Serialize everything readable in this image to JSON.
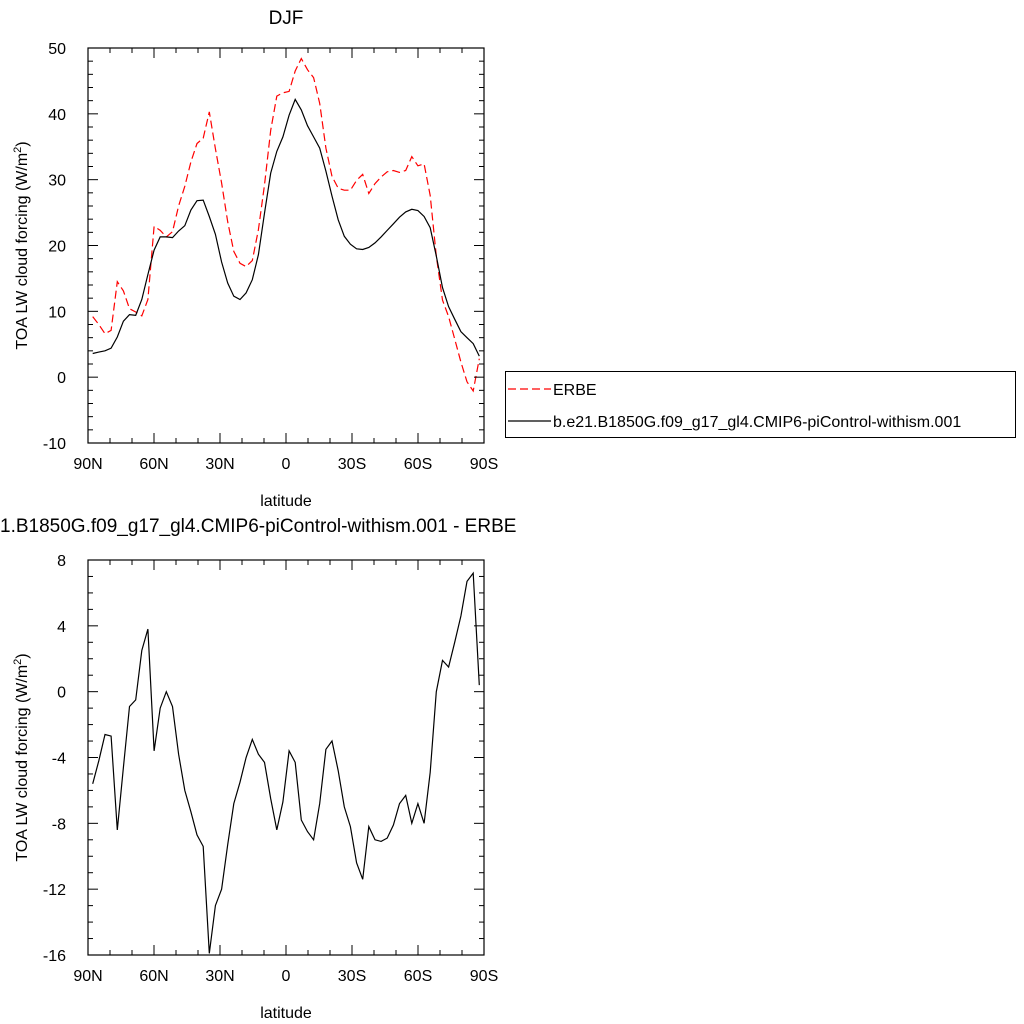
{
  "chart_data": [
    {
      "type": "line",
      "title": "DJF",
      "xlabel": "latitude",
      "ylabel": "TOA LW cloud forcing (W/m",
      "ylabel_sup": "2",
      "ylabel_end": ")",
      "xlim": [
        90,
        -90
      ],
      "ylim": [
        -10,
        50
      ],
      "xticks": [
        90,
        60,
        30,
        0,
        -30,
        -60,
        -90
      ],
      "xtick_labels": [
        "90N",
        "60N",
        "30N",
        "0",
        "30S",
        "60S",
        "90S"
      ],
      "yticks": [
        -10,
        0,
        10,
        20,
        30,
        40,
        50
      ],
      "ytick_labels": [
        "-10",
        "0",
        "10",
        "20",
        "30",
        "40",
        "50"
      ],
      "legend": {
        "placement": "right",
        "entries": [
          "ERBE",
          "b.e21.B1850G.f09_g17_gl4.CMIP6-piControl-withism.001"
        ]
      },
      "series": [
        {
          "name": "ERBE",
          "color": "#ff0000",
          "dash": "dashed",
          "values": [
            9.2,
            8.0,
            6.6,
            7.1,
            14.5,
            13.1,
            10.4,
            9.9,
            9.3,
            11.8,
            22.9,
            22.3,
            21.3,
            22.1,
            26.0,
            29.0,
            32.7,
            35.5,
            36.3,
            40.3,
            34.7,
            29.5,
            23.6,
            19.1,
            17.3,
            16.8,
            17.7,
            22.4,
            29.2,
            37.5,
            42.7,
            43.2,
            43.4,
            46.5,
            48.4,
            46.7,
            45.5,
            41.6,
            34.8,
            30.5,
            28.7,
            28.4,
            28.4,
            29.9,
            30.8,
            27.9,
            29.4,
            30.4,
            31.2,
            31.4,
            31.1,
            31.4,
            33.5,
            32.1,
            32.4,
            27.6,
            18.4,
            11.7,
            9.2,
            5.8,
            2.3,
            -0.7,
            -2.1,
            2.8
          ]
        },
        {
          "name": "b.e21.B1850G.f09_g17_gl4.CMIP6-piControl-withism.001",
          "color": "#000000",
          "dash": "solid",
          "values": [
            3.6,
            3.8,
            4.0,
            4.4,
            6.1,
            8.5,
            9.5,
            9.4,
            11.8,
            15.6,
            19.3,
            21.3,
            21.3,
            21.2,
            22.2,
            23.0,
            25.4,
            26.8,
            26.9,
            24.4,
            21.7,
            17.5,
            14.3,
            12.3,
            11.8,
            12.8,
            14.8,
            18.6,
            24.9,
            31.0,
            34.3,
            36.5,
            39.8,
            42.2,
            40.6,
            38.2,
            36.5,
            34.8,
            31.3,
            27.5,
            23.9,
            21.4,
            20.2,
            19.5,
            19.4,
            19.7,
            20.4,
            21.3,
            22.3,
            23.3,
            24.3,
            25.1,
            25.5,
            25.3,
            24.4,
            22.7,
            18.4,
            13.6,
            10.7,
            8.8,
            6.9,
            6.0,
            5.1,
            3.2
          ]
        }
      ]
    },
    {
      "type": "line",
      "title": "1.B1850G.f09_g17_gl4.CMIP6-piControl-withism.001 - ERBE",
      "xlabel": "latitude",
      "ylabel": "TOA LW cloud forcing (W/m",
      "ylabel_sup": "2",
      "ylabel_end": ")",
      "xlim": [
        90,
        -90
      ],
      "ylim": [
        -16,
        8
      ],
      "xticks": [
        90,
        60,
        30,
        0,
        -30,
        -60,
        -90
      ],
      "xtick_labels": [
        "90N",
        "60N",
        "30N",
        "0",
        "30S",
        "60S",
        "90S"
      ],
      "yticks": [
        -16,
        -12,
        -8,
        -4,
        0,
        4,
        8
      ],
      "ytick_labels": [
        "-16",
        "-12",
        "-8",
        "-4",
        "0",
        "4",
        "8"
      ],
      "series": [
        {
          "color": "#000000",
          "dash": "solid",
          "values": [
            -5.6,
            -4.2,
            -2.6,
            -2.7,
            -8.4,
            -4.6,
            -0.9,
            -0.5,
            2.5,
            3.8,
            -3.6,
            -1.0,
            0.0,
            -0.9,
            -3.8,
            -6.0,
            -7.3,
            -8.7,
            -9.4,
            -15.9,
            -13.0,
            -12.0,
            -9.3,
            -6.8,
            -5.5,
            -4.0,
            -2.9,
            -3.8,
            -4.3,
            -6.5,
            -8.4,
            -6.7,
            -3.6,
            -4.3,
            -7.8,
            -8.5,
            -9.0,
            -6.8,
            -3.5,
            -3.0,
            -4.8,
            -7.0,
            -8.2,
            -10.4,
            -11.4,
            -8.2,
            -9.0,
            -9.1,
            -8.9,
            -8.1,
            -6.8,
            -6.3,
            -8.0,
            -6.8,
            -8.0,
            -4.9,
            0.0,
            1.9,
            1.5,
            3.0,
            4.6,
            6.7,
            7.2,
            0.4
          ]
        }
      ]
    }
  ]
}
